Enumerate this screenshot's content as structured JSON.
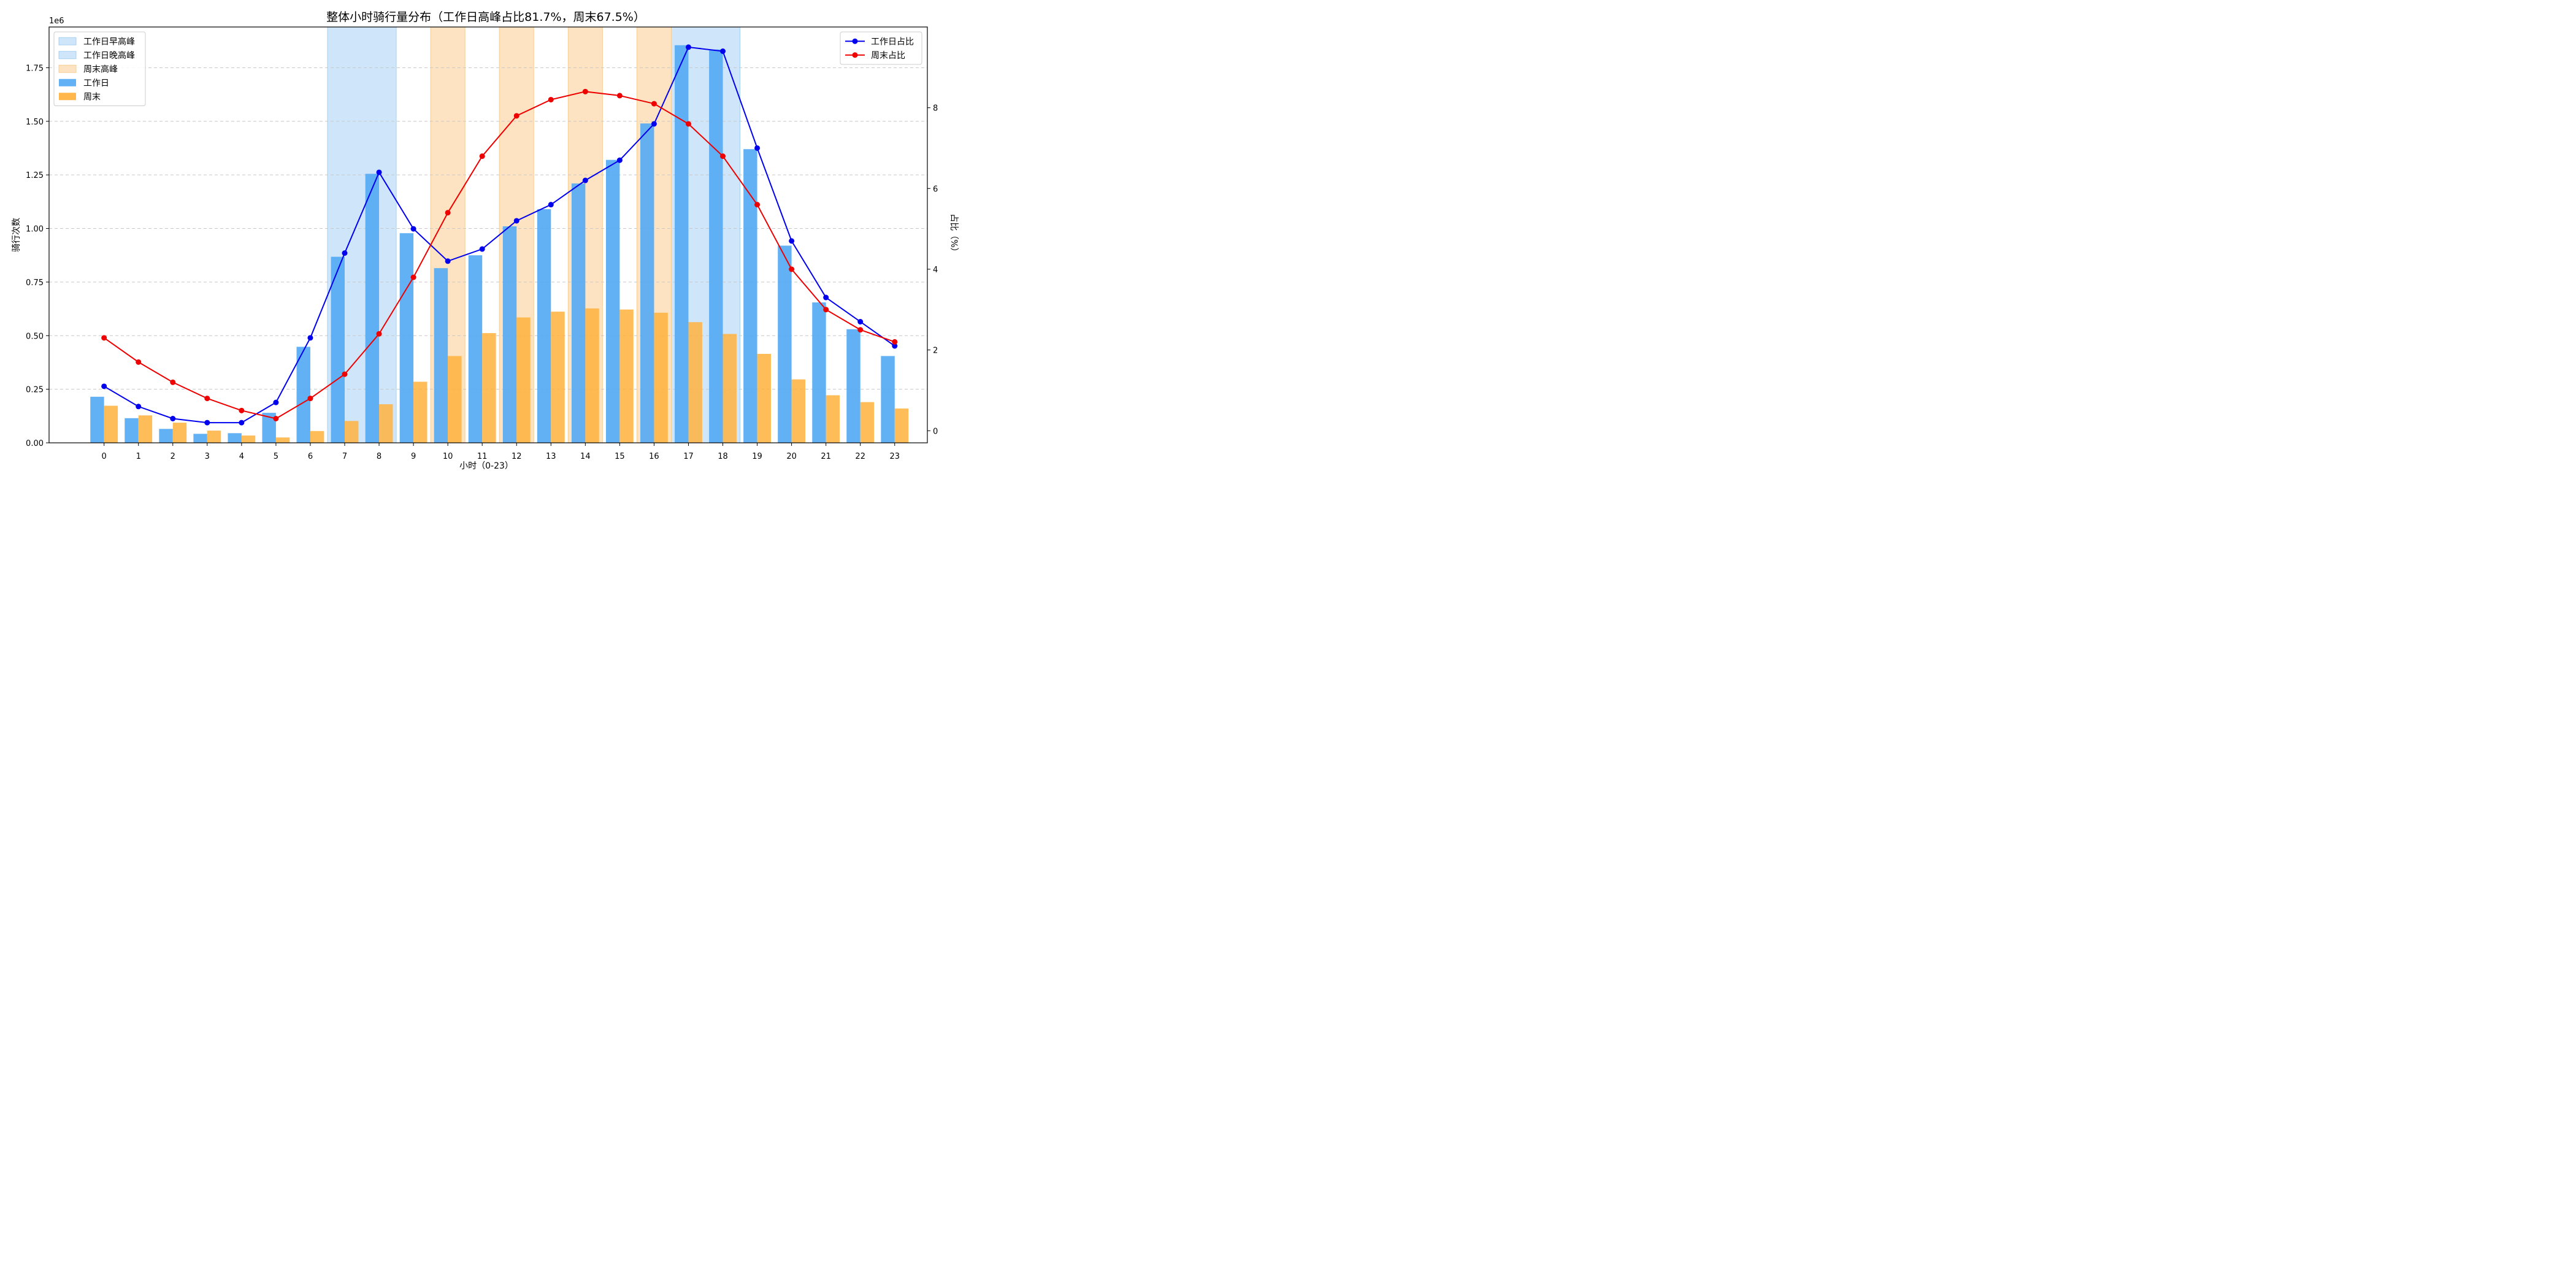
{
  "chart_data": {
    "type": "bar",
    "title": "整体小时骑行量分布（工作日高峰占比81.7%，周末67.5%）",
    "xlabel": "小时（0-23）",
    "ylabel": "骑行次数",
    "y2label": "占比（%）",
    "y_offset_label": "1e6",
    "categories": [
      "0",
      "1",
      "2",
      "3",
      "4",
      "5",
      "6",
      "7",
      "8",
      "9",
      "10",
      "11",
      "12",
      "13",
      "14",
      "15",
      "16",
      "17",
      "18",
      "19",
      "20",
      "21",
      "22",
      "23"
    ],
    "ylim": [
      0,
      1.94
    ],
    "y2lim": [
      -0.3,
      10.0
    ],
    "y_ticks": [
      0.0,
      0.25,
      0.5,
      0.75,
      1.0,
      1.25,
      1.5,
      1.75
    ],
    "y_tick_labels": [
      "0.00",
      "0.25",
      "0.50",
      "0.75",
      "1.00",
      "1.25",
      "1.50",
      "1.75"
    ],
    "y2_ticks": [
      0,
      2,
      4,
      6,
      8
    ],
    "y2_tick_labels": [
      "0",
      "2",
      "4",
      "6",
      "8"
    ],
    "grid": "horizontal-dashed",
    "colors": {
      "weekday_bar": "#56aaf4",
      "weekend_bar": "#ffb13d",
      "weekday_line": "#0000ee",
      "weekend_line": "#ee0000",
      "weekday_peak_shade": "#cfe6fa",
      "weekend_peak_shade": "#fde3c1"
    },
    "shaded_regions": [
      {
        "series": "工作日早高峰",
        "from": 6.5,
        "to": 8.5
      },
      {
        "series": "工作日晚高峰",
        "from": 16.5,
        "to": 18.5
      },
      {
        "series": "周末高峰",
        "from": 9.5,
        "to": 10.5
      },
      {
        "series": "周末高峰",
        "from": 11.5,
        "to": 12.5
      },
      {
        "series": "周末高峰",
        "from": 13.5,
        "to": 14.5
      },
      {
        "series": "周末高峰",
        "from": 15.5,
        "to": 16.5
      }
    ],
    "bar_series": [
      {
        "name": "工作日",
        "values": [
          0.215,
          0.115,
          0.065,
          0.042,
          0.045,
          0.14,
          0.448,
          0.868,
          1.255,
          0.978,
          0.815,
          0.875,
          1.01,
          1.09,
          1.21,
          1.32,
          1.49,
          1.855,
          1.835,
          1.37,
          0.92,
          0.655,
          0.53,
          0.405
        ]
      },
      {
        "name": "周末",
        "values": [
          0.173,
          0.128,
          0.094,
          0.057,
          0.034,
          0.025,
          0.055,
          0.102,
          0.18,
          0.285,
          0.405,
          0.512,
          0.585,
          0.612,
          0.627,
          0.622,
          0.607,
          0.563,
          0.508,
          0.415,
          0.296,
          0.222,
          0.19,
          0.16
        ]
      }
    ],
    "line_series": [
      {
        "name": "工作日占比",
        "values": [
          1.1,
          0.6,
          0.3,
          0.2,
          0.2,
          0.7,
          2.3,
          4.4,
          6.4,
          5.0,
          4.2,
          4.5,
          5.2,
          5.6,
          6.2,
          6.7,
          7.6,
          9.5,
          9.4,
          7.0,
          4.7,
          3.3,
          2.7,
          2.1
        ]
      },
      {
        "name": "周末占比",
        "values": [
          2.3,
          1.7,
          1.2,
          0.8,
          0.5,
          0.3,
          0.8,
          1.4,
          2.4,
          3.8,
          5.4,
          6.8,
          7.8,
          8.2,
          8.4,
          8.3,
          8.1,
          7.6,
          6.8,
          5.6,
          4.0,
          3.0,
          2.5,
          2.2
        ]
      }
    ],
    "legend_left": {
      "placement": "top-left",
      "entries": [
        {
          "label": "工作日早高峰",
          "kind": "shade",
          "color": "#cfe6fa"
        },
        {
          "label": "工作日晚高峰",
          "kind": "shade",
          "color": "#cfe6fa"
        },
        {
          "label": "周末高峰",
          "kind": "shade",
          "color": "#fde3c1"
        },
        {
          "label": "工作日",
          "kind": "bar",
          "color": "#56aaf4"
        },
        {
          "label": "周末",
          "kind": "bar",
          "color": "#ffb13d"
        }
      ]
    },
    "legend_right": {
      "placement": "top-right",
      "entries": [
        {
          "label": "工作日占比",
          "kind": "line",
          "color": "#0000ee"
        },
        {
          "label": "周末占比",
          "kind": "line",
          "color": "#ee0000"
        }
      ]
    }
  }
}
